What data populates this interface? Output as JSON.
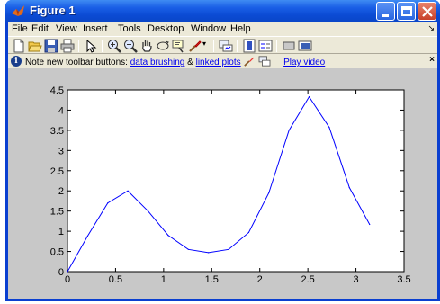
{
  "window": {
    "title": "Figure 1",
    "accent": "#0a46c8"
  },
  "menu": {
    "items": [
      "File",
      "Edit",
      "View",
      "Insert",
      "Tools",
      "Desktop",
      "Window",
      "Help"
    ]
  },
  "toolbar": {
    "buttons": [
      "new-figure-icon",
      "open-file-icon",
      "save-icon",
      "print-icon",
      "edit-plot-arrow-icon",
      "zoom-in-icon",
      "zoom-out-icon",
      "pan-hand-icon",
      "rotate-3d-icon",
      "data-cursor-icon",
      "brush-icon",
      "link-plot-icon",
      "colorbar-icon",
      "legend-icon",
      "hide-plot-tools-icon",
      "show-plot-tools-icon"
    ]
  },
  "infobar": {
    "prefix": "Note new toolbar buttons:",
    "link1": "data brushing",
    "amp": "&",
    "link2": "linked plots",
    "play": "Play video",
    "close": "×"
  },
  "chart_data": {
    "type": "line",
    "title": "",
    "xlabel": "",
    "ylabel": "",
    "xlim": [
      0,
      3.5
    ],
    "ylim": [
      0,
      4.5
    ],
    "xticks": [
      "0",
      "0.5",
      "1",
      "1.5",
      "2",
      "2.5",
      "3",
      "3.5"
    ],
    "yticks": [
      "0",
      "0.5",
      "1",
      "1.5",
      "2",
      "2.5",
      "3",
      "3.5",
      "4",
      "4.5"
    ],
    "grid": false,
    "series": [
      {
        "color": "#0000ff",
        "x": [
          0,
          0.209,
          0.419,
          0.628,
          0.838,
          1.047,
          1.257,
          1.466,
          1.676,
          1.885,
          2.094,
          2.304,
          2.513,
          2.723,
          2.932,
          3.142
        ],
        "y": [
          0,
          0.88,
          1.7,
          2.0,
          1.5,
          0.9,
          0.55,
          0.47,
          0.55,
          0.97,
          1.95,
          3.5,
          4.33,
          3.57,
          2.08,
          1.17
        ]
      }
    ]
  }
}
